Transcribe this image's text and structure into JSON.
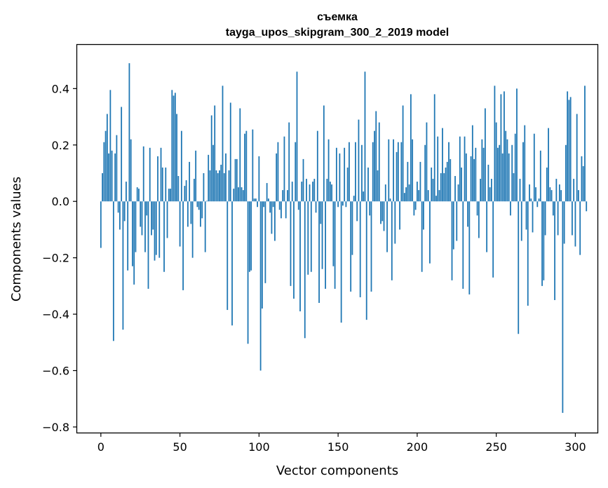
{
  "chart_data": {
    "type": "bar",
    "title_line1": "съемка",
    "title_line2": "tayga_upos_skipgram_300_2_2019 model",
    "xlabel": "Vector components",
    "ylabel": "Components values",
    "xlim": [
      -15,
      314
    ],
    "ylim": [
      -0.82,
      0.555
    ],
    "x_ticks": [
      0,
      50,
      100,
      150,
      200,
      250,
      300
    ],
    "y_ticks": [
      -0.8,
      -0.6,
      -0.4,
      -0.2,
      0.0,
      0.2,
      0.4
    ],
    "y_tick_labels": [
      "−0.8",
      "−0.6",
      "−0.4",
      "−0.2",
      "0.0",
      "0.2",
      "0.4"
    ],
    "bar_color": "#1f77b4",
    "grid": false,
    "values": [
      -0.165,
      0.1,
      0.21,
      0.25,
      0.31,
      0.17,
      0.395,
      0.18,
      -0.495,
      0.17,
      0.235,
      -0.04,
      -0.1,
      0.335,
      -0.455,
      -0.07,
      0.07,
      -0.245,
      0.49,
      0.22,
      -0.23,
      -0.295,
      -0.18,
      0.05,
      0.045,
      -0.09,
      -0.12,
      0.195,
      -0.18,
      -0.05,
      -0.31,
      0.19,
      -0.12,
      -0.1,
      -0.21,
      -0.19,
      0.16,
      -0.2,
      0.19,
      0.12,
      -0.25,
      0.12,
      -0.13,
      0.045,
      0.045,
      0.395,
      0.375,
      0.385,
      0.31,
      0.09,
      -0.16,
      0.25,
      -0.315,
      0.055,
      0.075,
      -0.09,
      0.14,
      -0.08,
      -0.2,
      0.08,
      0.18,
      -0.02,
      -0.03,
      -0.09,
      -0.06,
      0.1,
      -0.18,
      0.002,
      0.165,
      0.11,
      0.305,
      0.2,
      0.34,
      0.11,
      0.1,
      0.11,
      0.13,
      0.41,
      0.1,
      0.17,
      -0.385,
      0.11,
      0.35,
      -0.44,
      0.045,
      0.15,
      0.15,
      0.05,
      0.33,
      0.05,
      0.04,
      0.24,
      0.25,
      -0.505,
      -0.25,
      -0.245,
      0.255,
      0.01,
      0.01,
      -0.02,
      0.16,
      -0.6,
      -0.38,
      -0.02,
      -0.29,
      0.065,
      0.01,
      -0.04,
      -0.115,
      -0.02,
      -0.14,
      0.17,
      0.21,
      -0.03,
      -0.06,
      0.04,
      0.23,
      -0.06,
      0.04,
      0.28,
      -0.3,
      0.07,
      -0.345,
      0.21,
      0.46,
      -0.03,
      -0.39,
      0.07,
      0.15,
      -0.485,
      0.08,
      -0.26,
      0.06,
      -0.25,
      0.07,
      0.08,
      -0.04,
      0.25,
      -0.36,
      -0.08,
      -0.24,
      0.34,
      -0.31,
      0.08,
      0.22,
      0.07,
      0.06,
      -0.23,
      -0.31,
      0.19,
      -0.02,
      0.17,
      -0.43,
      -0.015,
      0.19,
      -0.02,
      0.12,
      0.21,
      -0.32,
      -0.19,
      0.02,
      0.21,
      -0.07,
      0.29,
      -0.34,
      0.2,
      0.035,
      0.46,
      -0.42,
      0.12,
      -0.05,
      -0.32,
      0.21,
      0.25,
      0.32,
      0.11,
      0.28,
      -0.08,
      -0.07,
      -0.105,
      0.06,
      -0.18,
      0.22,
      0.01,
      -0.28,
      0.22,
      -0.15,
      0.175,
      0.21,
      -0.1,
      0.21,
      0.34,
      0.03,
      0.05,
      0.14,
      0.06,
      0.38,
      0.22,
      -0.05,
      -0.03,
      0.07,
      0.04,
      0.14,
      -0.25,
      -0.1,
      0.2,
      0.28,
      0.04,
      -0.22,
      0.12,
      0.08,
      0.38,
      0.02,
      0.23,
      0.04,
      0.1,
      0.26,
      0.1,
      0.12,
      0.14,
      0.21,
      0.15,
      -0.28,
      -0.17,
      0.09,
      -0.14,
      0.06,
      0.23,
      0.12,
      -0.31,
      0.23,
      0.17,
      -0.09,
      -0.33,
      0.16,
      0.27,
      0.15,
      0.19,
      -0.05,
      -0.13,
      0.08,
      0.22,
      0.19,
      0.33,
      -0.18,
      0.13,
      0.05,
      0.08,
      -0.27,
      0.41,
      0.28,
      0.19,
      0.2,
      0.38,
      0.17,
      0.39,
      0.25,
      0.22,
      0.17,
      -0.05,
      0.2,
      0.1,
      0.24,
      0.4,
      -0.47,
      0.08,
      -0.14,
      0.21,
      0.27,
      -0.1,
      -0.37,
      0.06,
      0.01,
      -0.11,
      0.24,
      0.05,
      -0.02,
      0.01,
      0.18,
      -0.3,
      -0.28,
      -0.12,
      0.12,
      0.26,
      0.05,
      0.04,
      -0.05,
      -0.35,
      0.08,
      -0.12,
      0.06,
      0.04,
      -0.75,
      -0.15,
      0.2,
      0.39,
      0.36,
      0.37,
      -0.12,
      0.08,
      -0.16,
      0.31,
      0.04,
      -0.19,
      0.16,
      0.125,
      0.41,
      -0.035
    ]
  }
}
